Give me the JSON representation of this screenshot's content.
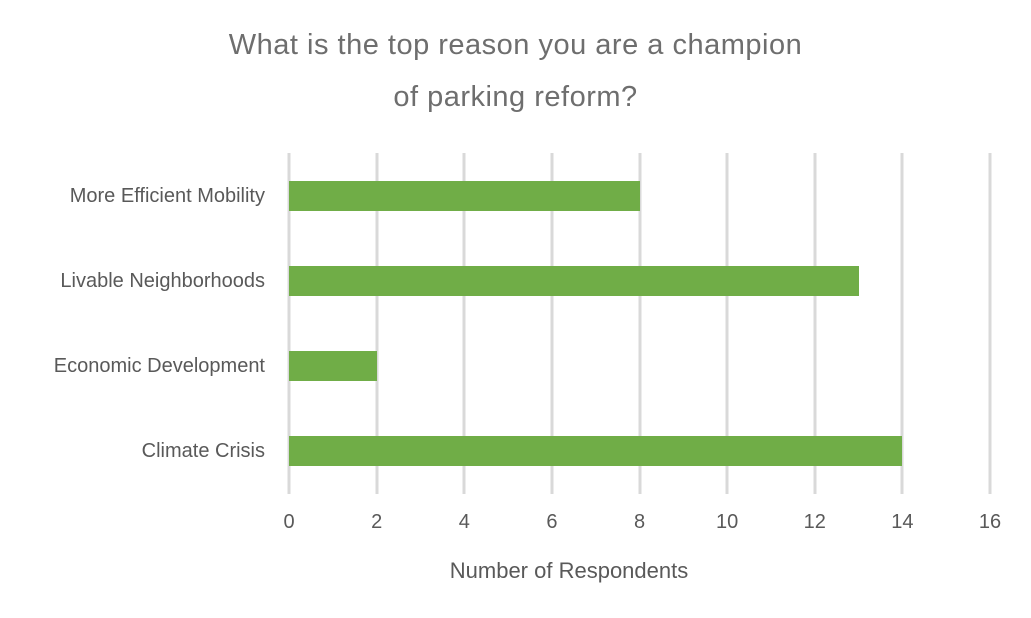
{
  "chart_data": {
    "type": "bar",
    "orientation": "horizontal",
    "title": "What is the top reason you are a champion of parking reform?",
    "title_lines": [
      "What is the top reason you are a champion",
      "of parking reform?"
    ],
    "categories": [
      "More Efficient Mobility",
      "Livable Neighborhoods",
      "Economic Development",
      "Climate Crisis"
    ],
    "values": [
      8,
      13,
      2,
      14
    ],
    "xlabel": "Number of Respondents",
    "ylabel": "",
    "xlim": [
      0,
      16
    ],
    "xticks": [
      0,
      2,
      4,
      6,
      8,
      10,
      12,
      14,
      16
    ],
    "grid": true,
    "legend": "none",
    "colors": {
      "bar": "#70AD47",
      "gridline": "#D9D9D9",
      "axis_text": "#595959",
      "title_text": "#6E6E6E",
      "background": "#FFFFFF"
    }
  }
}
